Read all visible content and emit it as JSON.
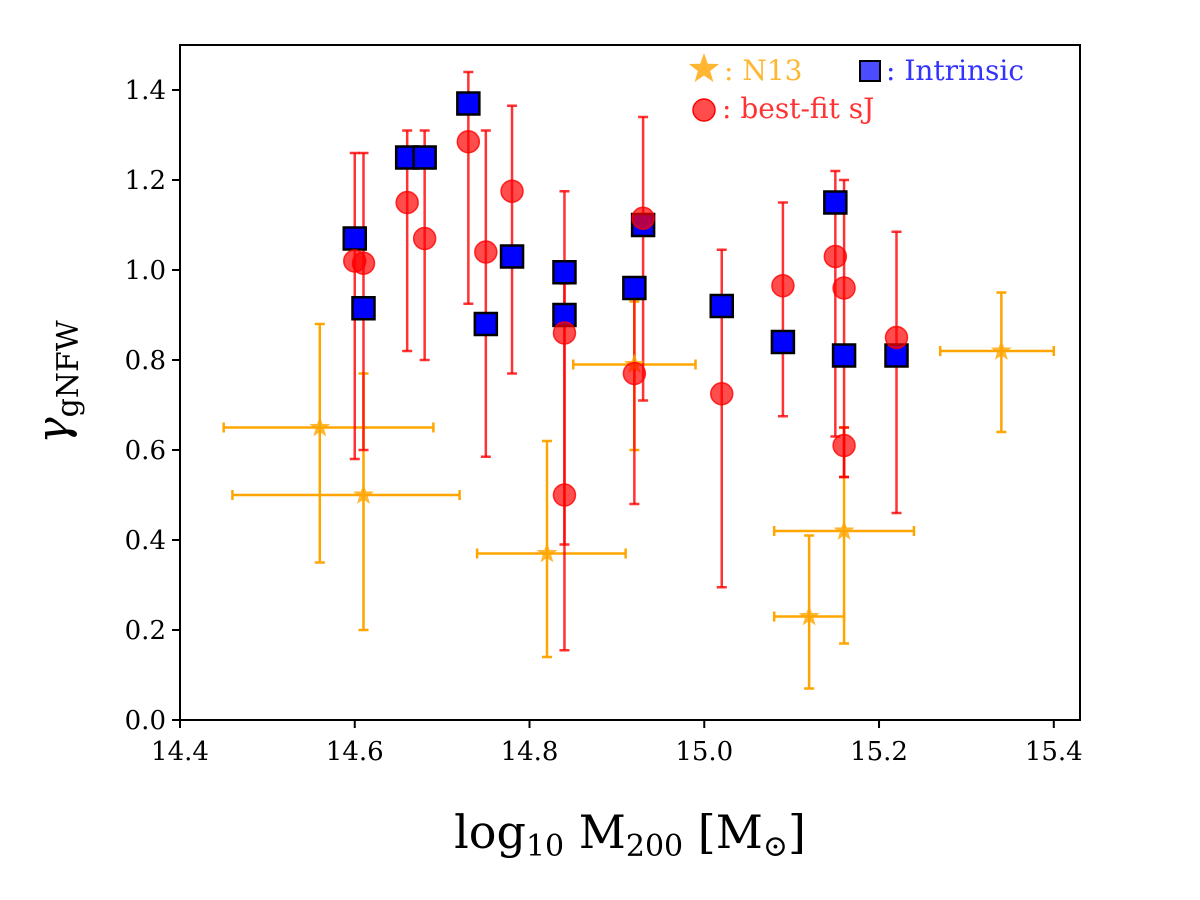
{
  "chart_data": {
    "type": "scatter",
    "title": "",
    "xlabel": {
      "base": "log",
      "sub": "10",
      "mid": " M",
      "sub2": "200",
      "rest": " [M",
      "sun": "⊙",
      "close": "]"
    },
    "ylabel": {
      "base": "γ",
      "sub": "gNFW"
    },
    "xlim": [
      14.4,
      15.43
    ],
    "ylim": [
      0.0,
      1.5
    ],
    "xticks": [
      "14.4",
      "14.6",
      "14.8",
      "15.0",
      "15.2",
      "15.4"
    ],
    "xtick_values": [
      14.4,
      14.6,
      14.8,
      15.0,
      15.2,
      15.4
    ],
    "yticks": [
      "0.0",
      "0.2",
      "0.4",
      "0.6",
      "0.8",
      "1.0",
      "1.2",
      "1.4"
    ],
    "ytick_values": [
      0.0,
      0.2,
      0.4,
      0.6,
      0.8,
      1.0,
      1.2,
      1.4
    ],
    "grid": false,
    "legend_position": "top-right",
    "legend": [
      {
        "label": ": N13",
        "marker": "star",
        "color": "#FFA500"
      },
      {
        "label": ": Intrinsic",
        "marker": "square",
        "color": "#0000FF"
      },
      {
        "label": ": best-fit sJ",
        "marker": "circle",
        "color": "#FF0000"
      }
    ],
    "series": [
      {
        "name": "N13",
        "marker": "star",
        "color": "#FFA500",
        "points": [
          {
            "x": 14.56,
            "y": 0.65,
            "xerr": [
              0.11,
              0.13
            ],
            "yerr": [
              0.3,
              0.23
            ]
          },
          {
            "x": 14.61,
            "y": 0.5,
            "xerr": [
              0.15,
              0.11
            ],
            "yerr": [
              0.3,
              0.27
            ]
          },
          {
            "x": 14.82,
            "y": 0.37,
            "xerr": [
              0.08,
              0.09
            ],
            "yerr": [
              0.23,
              0.25
            ]
          },
          {
            "x": 14.92,
            "y": 0.79,
            "xerr": [
              0.07,
              0.07
            ],
            "yerr": [
              0.19,
              0.14
            ]
          },
          {
            "x": 15.12,
            "y": 0.23,
            "xerr": [
              0.04,
              0.04
            ],
            "yerr": [
              0.16,
              0.18
            ]
          },
          {
            "x": 15.16,
            "y": 0.42,
            "xerr": [
              0.08,
              0.08
            ],
            "yerr": [
              0.25,
              0.23
            ]
          },
          {
            "x": 15.34,
            "y": 0.82,
            "xerr": [
              0.07,
              0.06
            ],
            "yerr": [
              0.18,
              0.13
            ]
          }
        ]
      },
      {
        "name": "best-fit sJ",
        "marker": "circle",
        "color": "#FF0000",
        "points": [
          {
            "x": 14.6,
            "y": 1.02,
            "yerr": [
              0.44,
              0.24
            ]
          },
          {
            "x": 14.61,
            "y": 1.015,
            "yerr": [
              0.415,
              0.245
            ]
          },
          {
            "x": 14.66,
            "y": 1.15,
            "yerr": [
              0.33,
              0.16
            ]
          },
          {
            "x": 14.68,
            "y": 1.07,
            "yerr": [
              0.27,
              0.24
            ]
          },
          {
            "x": 14.73,
            "y": 1.285,
            "yerr": [
              0.36,
              0.155
            ]
          },
          {
            "x": 14.75,
            "y": 1.04,
            "yerr": [
              0.455,
              0.27
            ]
          },
          {
            "x": 14.78,
            "y": 1.175,
            "yerr": [
              0.405,
              0.19
            ]
          },
          {
            "x": 14.84,
            "y": 0.86,
            "yerr": [
              0.47,
              0.315
            ]
          },
          {
            "x": 14.84,
            "y": 0.5,
            "yerr": [
              0.345,
              0.47
            ]
          },
          {
            "x": 14.92,
            "y": 0.77,
            "yerr": [
              0.29,
              0.2
            ]
          },
          {
            "x": 14.93,
            "y": 1.115,
            "yerr": [
              0.405,
              0.225
            ]
          },
          {
            "x": 15.02,
            "y": 0.725,
            "yerr": [
              0.43,
              0.32
            ]
          },
          {
            "x": 15.09,
            "y": 0.965,
            "yerr": [
              0.29,
              0.185
            ]
          },
          {
            "x": 15.15,
            "y": 1.03,
            "yerr": [
              0.4,
              0.19
            ]
          },
          {
            "x": 15.16,
            "y": 0.96,
            "yerr": [
              0.42,
              0.24
            ]
          },
          {
            "x": 15.16,
            "y": 0.61,
            "yerr": [
              0.07,
              0.04
            ]
          },
          {
            "x": 15.22,
            "y": 0.85,
            "yerr": [
              0.39,
              0.235
            ]
          }
        ]
      },
      {
        "name": "Intrinsic",
        "marker": "square",
        "color": "#0000FF",
        "points": [
          {
            "x": 14.6,
            "y": 1.07
          },
          {
            "x": 14.61,
            "y": 0.915
          },
          {
            "x": 14.66,
            "y": 1.25
          },
          {
            "x": 14.68,
            "y": 1.25
          },
          {
            "x": 14.73,
            "y": 1.37
          },
          {
            "x": 14.75,
            "y": 0.88
          },
          {
            "x": 14.78,
            "y": 1.03
          },
          {
            "x": 14.84,
            "y": 0.995
          },
          {
            "x": 14.84,
            "y": 0.9
          },
          {
            "x": 14.92,
            "y": 0.96
          },
          {
            "x": 14.93,
            "y": 1.1
          },
          {
            "x": 15.02,
            "y": 0.92
          },
          {
            "x": 15.09,
            "y": 0.84
          },
          {
            "x": 15.15,
            "y": 1.15
          },
          {
            "x": 15.16,
            "y": 0.81
          },
          {
            "x": 15.22,
            "y": 0.81
          }
        ]
      }
    ]
  }
}
